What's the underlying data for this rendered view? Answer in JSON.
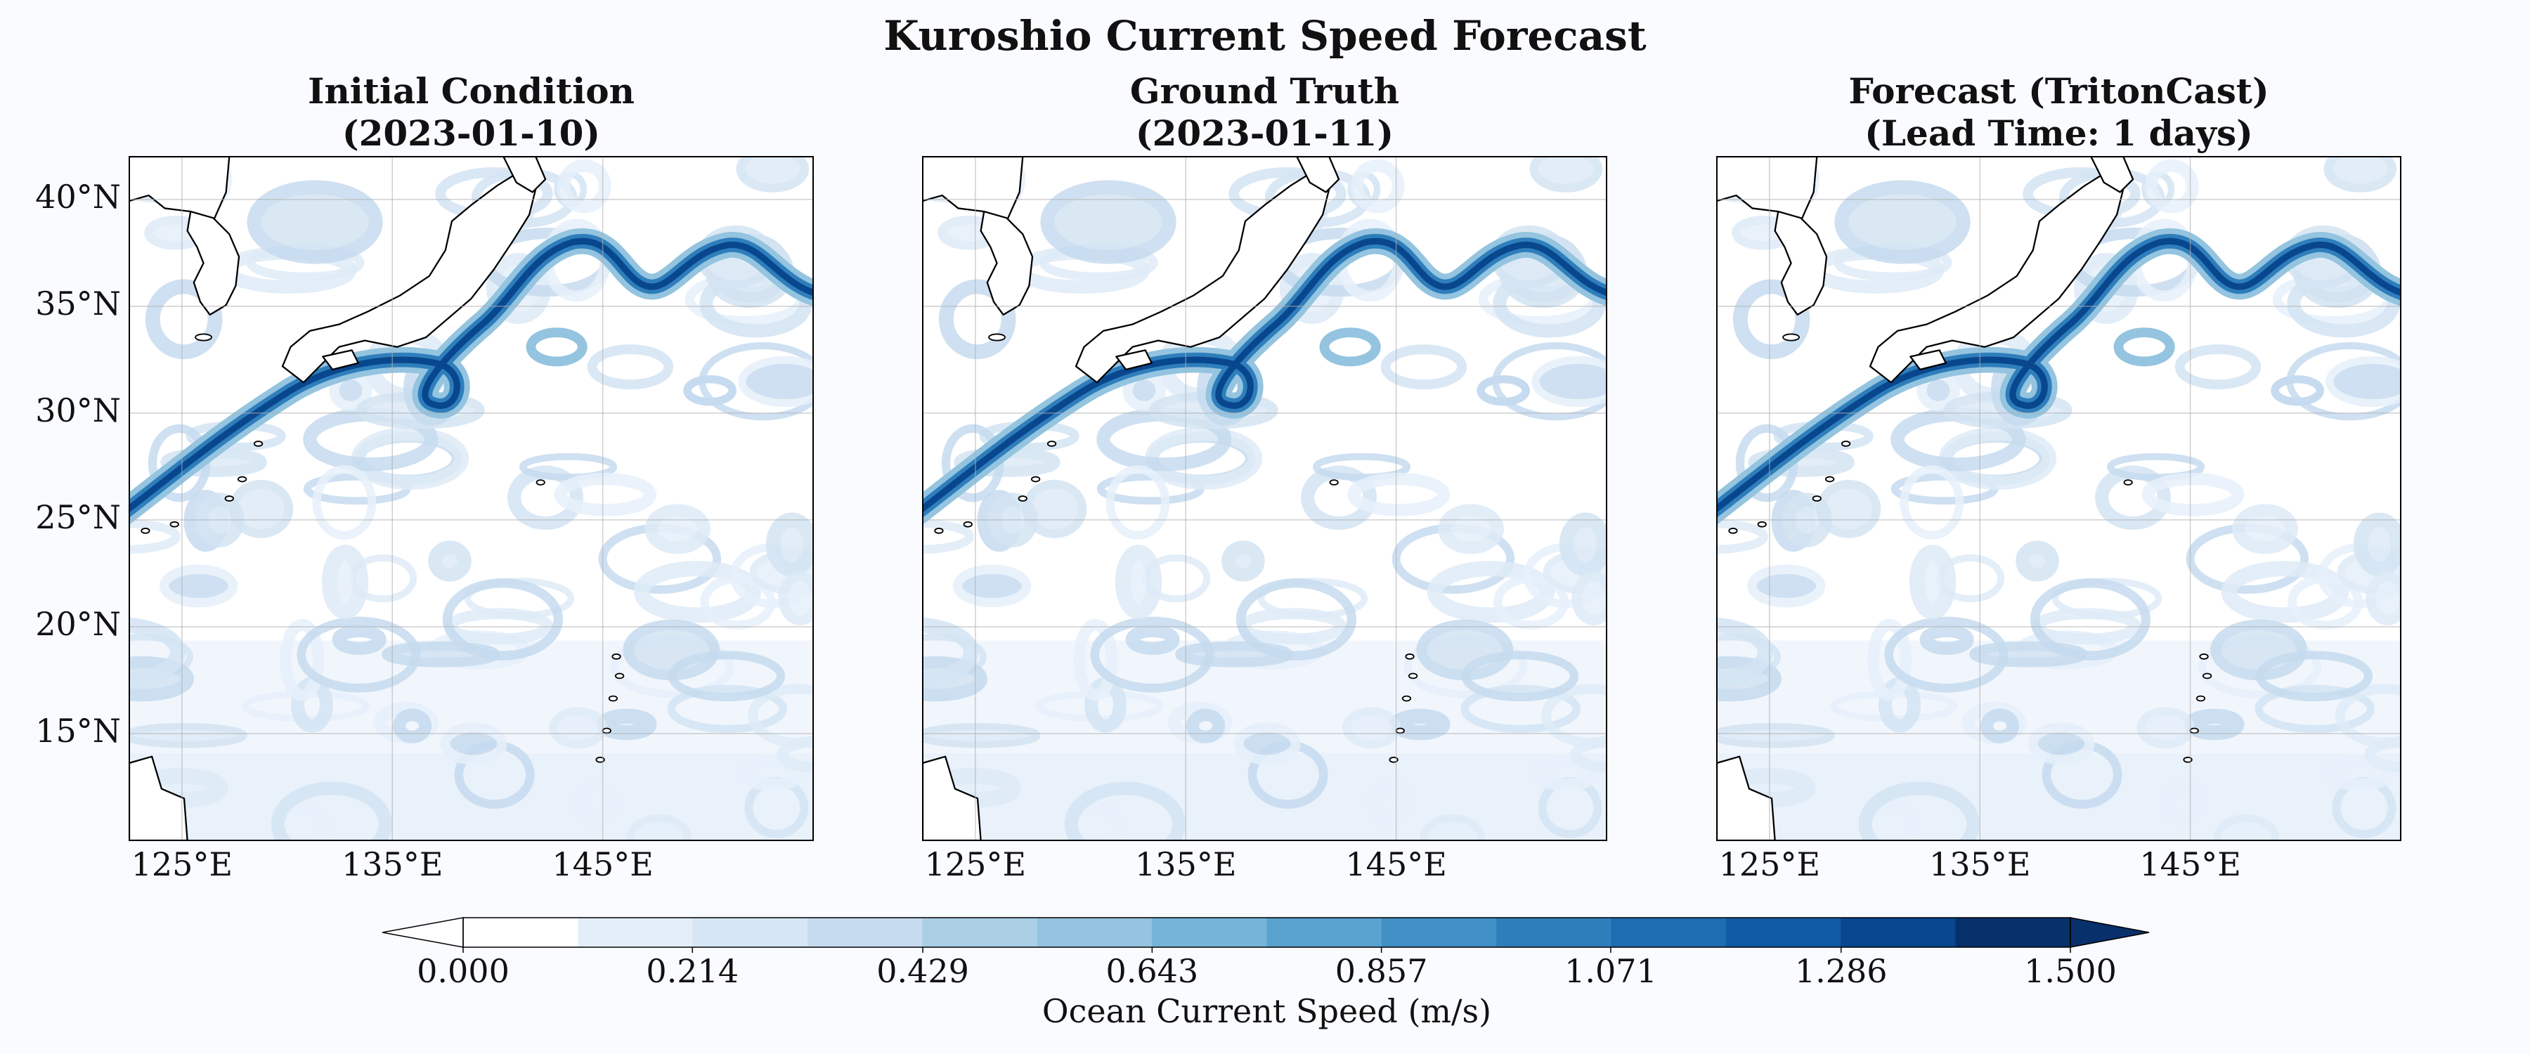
{
  "title": "Kuroshio Current Speed Forecast",
  "chart_data": [
    {
      "type": "map",
      "title": "Initial Condition",
      "subtitle": "(2023-01-10)",
      "xlim": [
        122.5,
        155
      ],
      "ylim": [
        10,
        42
      ],
      "xticks": [
        {
          "value": 125,
          "label": "125°E"
        },
        {
          "value": 135,
          "label": "135°E"
        },
        {
          "value": 145,
          "label": "145°E"
        }
      ],
      "yticks": [
        {
          "value": 15,
          "label": "15°N"
        },
        {
          "value": 20,
          "label": "20°N"
        },
        {
          "value": 25,
          "label": "25°N"
        },
        {
          "value": 30,
          "label": "30°N"
        },
        {
          "value": 35,
          "label": "35°N"
        },
        {
          "value": 40,
          "label": "40°N"
        }
      ],
      "grid": true
    },
    {
      "type": "map",
      "title": "Ground Truth",
      "subtitle": "(2023-01-11)",
      "xlim": [
        122.5,
        155
      ],
      "ylim": [
        10,
        42
      ],
      "xticks": [
        {
          "value": 125,
          "label": "125°E"
        },
        {
          "value": 135,
          "label": "135°E"
        },
        {
          "value": 145,
          "label": "145°E"
        }
      ],
      "yticks": [
        15,
        20,
        25,
        30,
        35,
        40
      ],
      "grid": true
    },
    {
      "type": "map",
      "title": "Forecast (TritonCast)",
      "subtitle": "(Lead Time: 1 days)",
      "xlim": [
        122.5,
        155
      ],
      "ylim": [
        10,
        42
      ],
      "xticks": [
        {
          "value": 125,
          "label": "125°E"
        },
        {
          "value": 135,
          "label": "135°E"
        },
        {
          "value": 145,
          "label": "145°E"
        }
      ],
      "yticks": [
        15,
        20,
        25,
        30,
        35,
        40
      ],
      "grid": true
    },
    {
      "type": "colorbar",
      "label": "Ocean Current Speed (m/s)",
      "xlim": [
        0,
        1.5
      ],
      "xticks": [
        {
          "value": 0,
          "label": "0.000"
        },
        0.214,
        0.429,
        0.643,
        0.857,
        1.071,
        1.286,
        {
          "value": 1.5,
          "label": "1.500"
        }
      ],
      "colors": [
        "#ffffff",
        "#e3eef9",
        "#d6e6f4",
        "#c6dbef",
        "#abd0e6",
        "#94c4df",
        "#75b4d8",
        "#5aa2cf",
        "#4190c5",
        "#2f7ebc",
        "#1e6cb1",
        "#105ba4",
        "#08478d",
        "#08306b"
      ],
      "extend": "both",
      "under_color": "#ffffff",
      "over_color": "#08306b"
    }
  ]
}
